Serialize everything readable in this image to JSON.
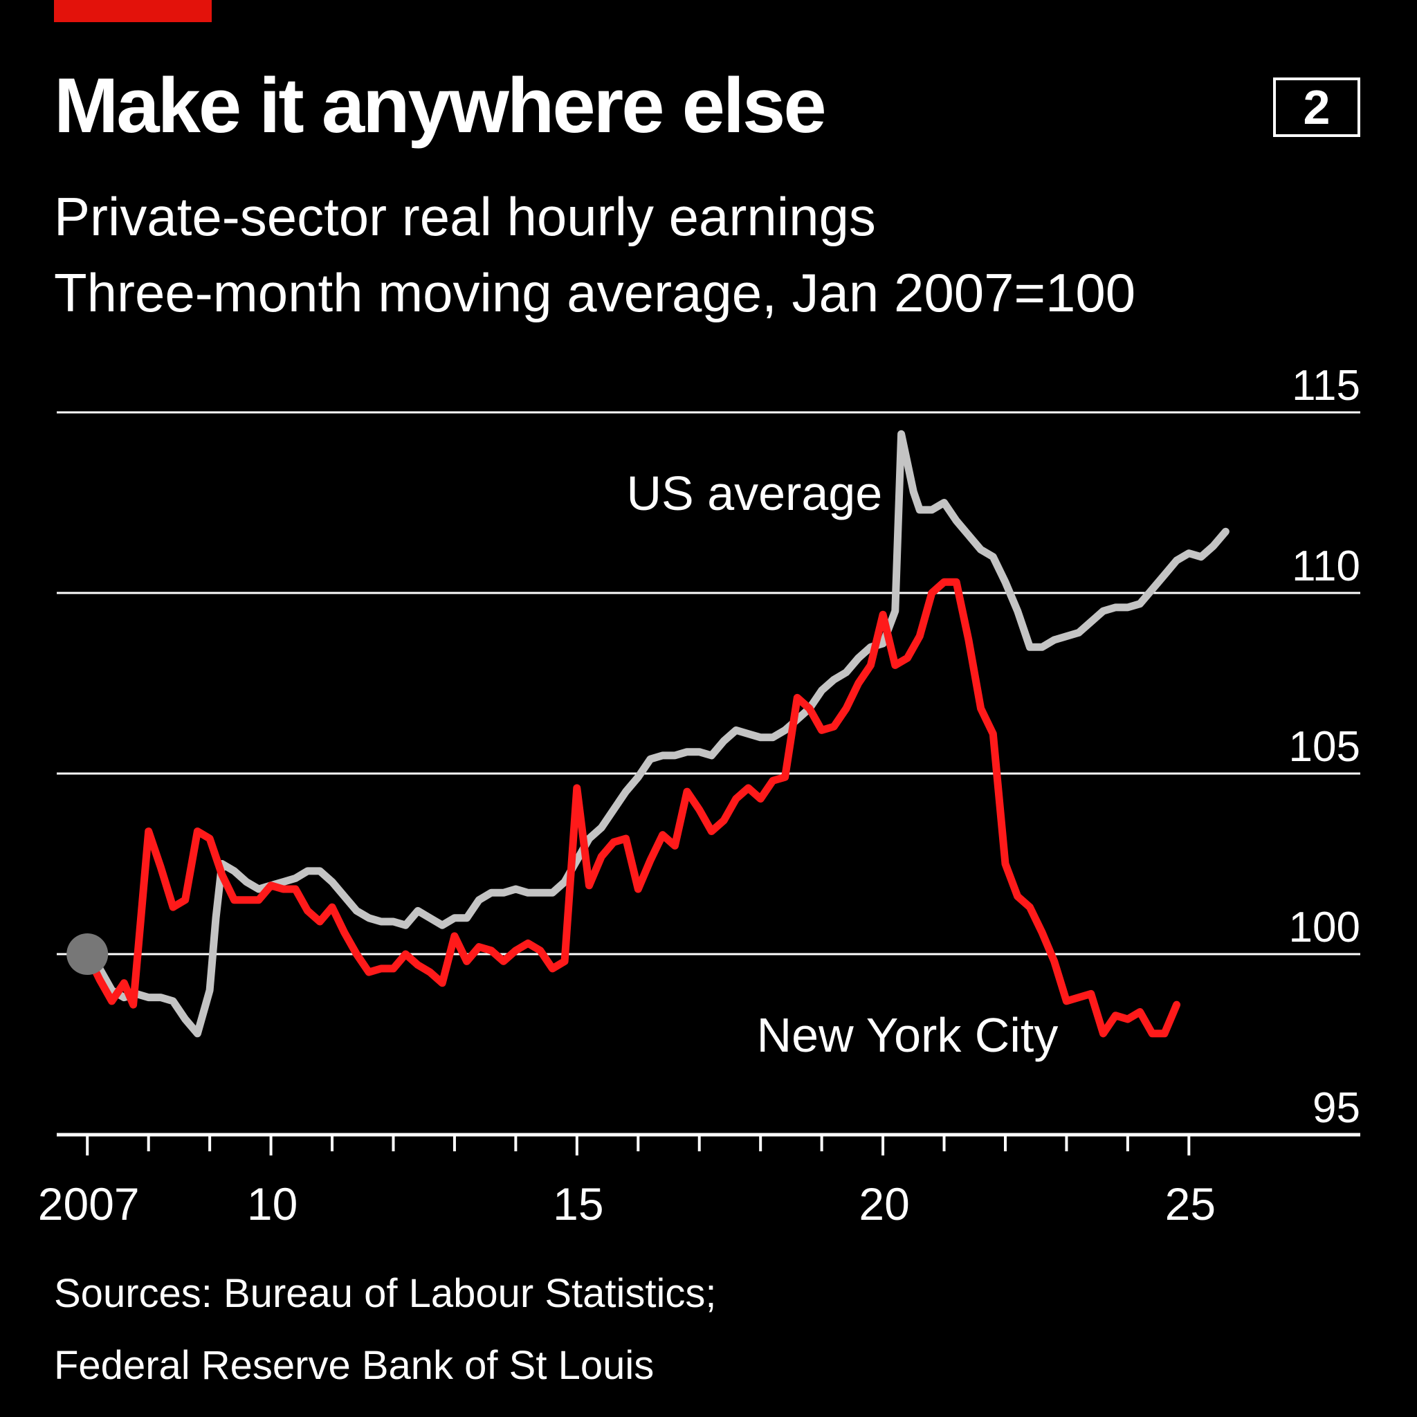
{
  "header": {
    "title": "Make it anywhere else",
    "chart_number": "2",
    "subtitle": "Private-sector real hourly earnings",
    "unit_note": "Three-month moving average, Jan 2007=100"
  },
  "footer": {
    "sources_line1": "Sources: Bureau of Labour Statistics;",
    "sources_line2": "Federal Reserve Bank of St Louis"
  },
  "colors": {
    "background": "#000000",
    "text": "#ffffff",
    "accent_red": "#e3120b",
    "nyc_line": "#ff1a1a",
    "us_line": "#c4c4c4",
    "start_marker": "#777777",
    "gridline": "#ffffff"
  },
  "chart_data": {
    "type": "line",
    "title": "Make it anywhere else",
    "subtitle": "Private-sector real hourly earnings; Three-month moving average, Jan 2007=100",
    "xlabel": "",
    "ylabel": "",
    "x_range": [
      2006.5,
      2027.8
    ],
    "ylim": [
      95,
      115
    ],
    "y_ticks": [
      95,
      100,
      105,
      110,
      115
    ],
    "y_tick_labels": [
      "95",
      "100",
      "105",
      "110",
      "115"
    ],
    "x_tick_years": [
      2007,
      2008,
      2009,
      2010,
      2011,
      2012,
      2013,
      2014,
      2015,
      2016,
      2017,
      2018,
      2019,
      2020,
      2021,
      2022,
      2023,
      2024,
      2025
    ],
    "x_tick_labels": [
      {
        "year": 2007,
        "label": "2007"
      },
      {
        "year": 2010,
        "label": "10"
      },
      {
        "year": 2015,
        "label": "15"
      },
      {
        "year": 2020,
        "label": "20"
      },
      {
        "year": 2025,
        "label": "25"
      }
    ],
    "grid": true,
    "start_marker": {
      "x": 2007.0,
      "y": 100
    },
    "series": [
      {
        "name": "US average",
        "color": "#c4c4c4",
        "label_anchor": {
          "x": 2017.9,
          "y": 112.3
        },
        "points": [
          [
            2007.0,
            100.0
          ],
          [
            2007.2,
            99.6
          ],
          [
            2007.4,
            99.0
          ],
          [
            2007.6,
            98.8
          ],
          [
            2007.8,
            98.9
          ],
          [
            2008.0,
            98.8
          ],
          [
            2008.2,
            98.8
          ],
          [
            2008.4,
            98.7
          ],
          [
            2008.6,
            98.2
          ],
          [
            2008.8,
            97.8
          ],
          [
            2009.0,
            99.0
          ],
          [
            2009.1,
            101.0
          ],
          [
            2009.2,
            102.5
          ],
          [
            2009.4,
            102.3
          ],
          [
            2009.6,
            102.0
          ],
          [
            2009.8,
            101.8
          ],
          [
            2010.0,
            101.9
          ],
          [
            2010.2,
            102.0
          ],
          [
            2010.4,
            102.1
          ],
          [
            2010.6,
            102.3
          ],
          [
            2010.8,
            102.3
          ],
          [
            2011.0,
            102.0
          ],
          [
            2011.2,
            101.6
          ],
          [
            2011.4,
            101.2
          ],
          [
            2011.6,
            101.0
          ],
          [
            2011.8,
            100.9
          ],
          [
            2012.0,
            100.9
          ],
          [
            2012.2,
            100.8
          ],
          [
            2012.4,
            101.2
          ],
          [
            2012.6,
            101.0
          ],
          [
            2012.8,
            100.8
          ],
          [
            2013.0,
            101.0
          ],
          [
            2013.2,
            101.0
          ],
          [
            2013.4,
            101.5
          ],
          [
            2013.6,
            101.7
          ],
          [
            2013.8,
            101.7
          ],
          [
            2014.0,
            101.8
          ],
          [
            2014.2,
            101.7
          ],
          [
            2014.4,
            101.7
          ],
          [
            2014.6,
            101.7
          ],
          [
            2014.8,
            102.0
          ],
          [
            2015.0,
            102.6
          ],
          [
            2015.2,
            103.2
          ],
          [
            2015.4,
            103.5
          ],
          [
            2015.6,
            104.0
          ],
          [
            2015.8,
            104.5
          ],
          [
            2016.0,
            104.9
          ],
          [
            2016.2,
            105.4
          ],
          [
            2016.4,
            105.5
          ],
          [
            2016.6,
            105.5
          ],
          [
            2016.8,
            105.6
          ],
          [
            2017.0,
            105.6
          ],
          [
            2017.2,
            105.5
          ],
          [
            2017.4,
            105.9
          ],
          [
            2017.6,
            106.2
          ],
          [
            2017.8,
            106.1
          ],
          [
            2018.0,
            106.0
          ],
          [
            2018.2,
            106.0
          ],
          [
            2018.4,
            106.2
          ],
          [
            2018.6,
            106.5
          ],
          [
            2018.8,
            106.8
          ],
          [
            2019.0,
            107.3
          ],
          [
            2019.2,
            107.6
          ],
          [
            2019.4,
            107.8
          ],
          [
            2019.6,
            108.2
          ],
          [
            2019.8,
            108.5
          ],
          [
            2020.0,
            108.6
          ],
          [
            2020.2,
            109.5
          ],
          [
            2020.3,
            114.4
          ],
          [
            2020.5,
            112.8
          ],
          [
            2020.6,
            112.3
          ],
          [
            2020.8,
            112.3
          ],
          [
            2021.0,
            112.5
          ],
          [
            2021.2,
            112.0
          ],
          [
            2021.4,
            111.6
          ],
          [
            2021.6,
            111.2
          ],
          [
            2021.8,
            111.0
          ],
          [
            2022.0,
            110.3
          ],
          [
            2022.2,
            109.5
          ],
          [
            2022.4,
            108.5
          ],
          [
            2022.6,
            108.5
          ],
          [
            2022.8,
            108.7
          ],
          [
            2023.0,
            108.8
          ],
          [
            2023.2,
            108.9
          ],
          [
            2023.4,
            109.2
          ],
          [
            2023.6,
            109.5
          ],
          [
            2023.8,
            109.6
          ],
          [
            2024.0,
            109.6
          ],
          [
            2024.2,
            109.7
          ],
          [
            2024.4,
            110.1
          ],
          [
            2024.6,
            110.5
          ],
          [
            2024.8,
            110.9
          ],
          [
            2025.0,
            111.1
          ],
          [
            2025.2,
            111.0
          ],
          [
            2025.4,
            111.3
          ],
          [
            2025.6,
            111.7
          ]
        ]
      },
      {
        "name": "New York City",
        "color": "#ff1a1a",
        "label_anchor": {
          "x": 2020.4,
          "y": 97.3
        },
        "points": [
          [
            2007.0,
            100.0
          ],
          [
            2007.2,
            99.3
          ],
          [
            2007.4,
            98.7
          ],
          [
            2007.6,
            99.2
          ],
          [
            2007.75,
            98.6
          ],
          [
            2008.0,
            103.4
          ],
          [
            2008.2,
            102.4
          ],
          [
            2008.4,
            101.3
          ],
          [
            2008.6,
            101.5
          ],
          [
            2008.8,
            103.4
          ],
          [
            2009.0,
            103.2
          ],
          [
            2009.2,
            102.2
          ],
          [
            2009.4,
            101.5
          ],
          [
            2009.6,
            101.5
          ],
          [
            2009.8,
            101.5
          ],
          [
            2010.0,
            101.9
          ],
          [
            2010.2,
            101.8
          ],
          [
            2010.4,
            101.8
          ],
          [
            2010.6,
            101.2
          ],
          [
            2010.8,
            100.9
          ],
          [
            2011.0,
            101.3
          ],
          [
            2011.2,
            100.6
          ],
          [
            2011.4,
            100.0
          ],
          [
            2011.6,
            99.5
          ],
          [
            2011.8,
            99.6
          ],
          [
            2012.0,
            99.6
          ],
          [
            2012.2,
            100.0
          ],
          [
            2012.4,
            99.7
          ],
          [
            2012.6,
            99.5
          ],
          [
            2012.8,
            99.2
          ],
          [
            2013.0,
            100.5
          ],
          [
            2013.2,
            99.8
          ],
          [
            2013.4,
            100.2
          ],
          [
            2013.6,
            100.1
          ],
          [
            2013.8,
            99.8
          ],
          [
            2014.0,
            100.1
          ],
          [
            2014.2,
            100.3
          ],
          [
            2014.4,
            100.1
          ],
          [
            2014.6,
            99.6
          ],
          [
            2014.8,
            99.8
          ],
          [
            2015.0,
            104.6
          ],
          [
            2015.2,
            101.9
          ],
          [
            2015.4,
            102.7
          ],
          [
            2015.6,
            103.1
          ],
          [
            2015.8,
            103.2
          ],
          [
            2016.0,
            101.8
          ],
          [
            2016.2,
            102.6
          ],
          [
            2016.4,
            103.3
          ],
          [
            2016.6,
            103.0
          ],
          [
            2016.8,
            104.5
          ],
          [
            2017.0,
            104.0
          ],
          [
            2017.2,
            103.4
          ],
          [
            2017.4,
            103.7
          ],
          [
            2017.6,
            104.3
          ],
          [
            2017.8,
            104.6
          ],
          [
            2018.0,
            104.3
          ],
          [
            2018.2,
            104.8
          ],
          [
            2018.4,
            104.9
          ],
          [
            2018.6,
            107.1
          ],
          [
            2018.8,
            106.8
          ],
          [
            2019.0,
            106.2
          ],
          [
            2019.2,
            106.3
          ],
          [
            2019.4,
            106.8
          ],
          [
            2019.6,
            107.5
          ],
          [
            2019.8,
            108.0
          ],
          [
            2020.0,
            109.4
          ],
          [
            2020.2,
            108.0
          ],
          [
            2020.4,
            108.2
          ],
          [
            2020.6,
            108.8
          ],
          [
            2020.8,
            110.0
          ],
          [
            2021.0,
            110.3
          ],
          [
            2021.2,
            110.3
          ],
          [
            2021.4,
            108.7
          ],
          [
            2021.6,
            106.8
          ],
          [
            2021.8,
            106.1
          ],
          [
            2022.0,
            102.5
          ],
          [
            2022.2,
            101.6
          ],
          [
            2022.4,
            101.3
          ],
          [
            2022.6,
            100.6
          ],
          [
            2022.8,
            99.8
          ],
          [
            2023.0,
            98.7
          ],
          [
            2023.2,
            98.8
          ],
          [
            2023.4,
            98.9
          ],
          [
            2023.6,
            97.8
          ],
          [
            2023.8,
            98.3
          ],
          [
            2024.0,
            98.2
          ],
          [
            2024.2,
            98.4
          ],
          [
            2024.4,
            97.8
          ],
          [
            2024.6,
            97.8
          ],
          [
            2024.8,
            98.6
          ]
        ]
      }
    ]
  }
}
